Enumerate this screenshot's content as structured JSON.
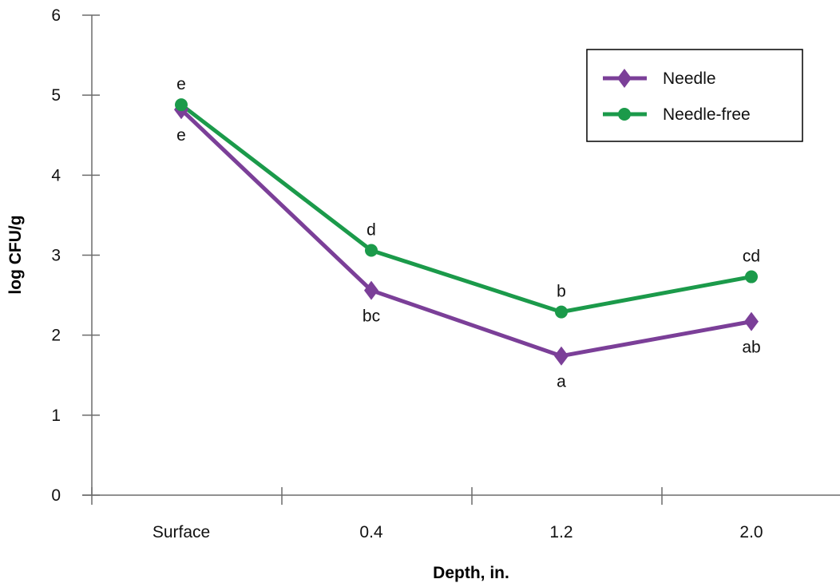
{
  "chart_data": {
    "type": "line",
    "xlabel": "Depth, in.",
    "ylabel": "log CFU/g",
    "categories": [
      "Surface",
      "0.4",
      "1.2",
      "2.0"
    ],
    "ylim": [
      0,
      6
    ],
    "yticks": [
      0,
      1,
      2,
      3,
      4,
      5,
      6
    ],
    "grid": false,
    "legend_position": "top-right",
    "series": [
      {
        "name": "Needle",
        "marker": "diamond",
        "color": "#7b3f98",
        "values": [
          4.82,
          2.56,
          1.74,
          2.17
        ],
        "point_labels": [
          "e",
          "bc",
          "a",
          "ab"
        ],
        "label_position": "below"
      },
      {
        "name": "Needle-free",
        "marker": "circle",
        "color": "#1b9a4a",
        "values": [
          4.88,
          3.06,
          2.29,
          2.73
        ],
        "point_labels": [
          "e",
          "d",
          "b",
          "cd"
        ],
        "label_position": "above"
      }
    ]
  }
}
